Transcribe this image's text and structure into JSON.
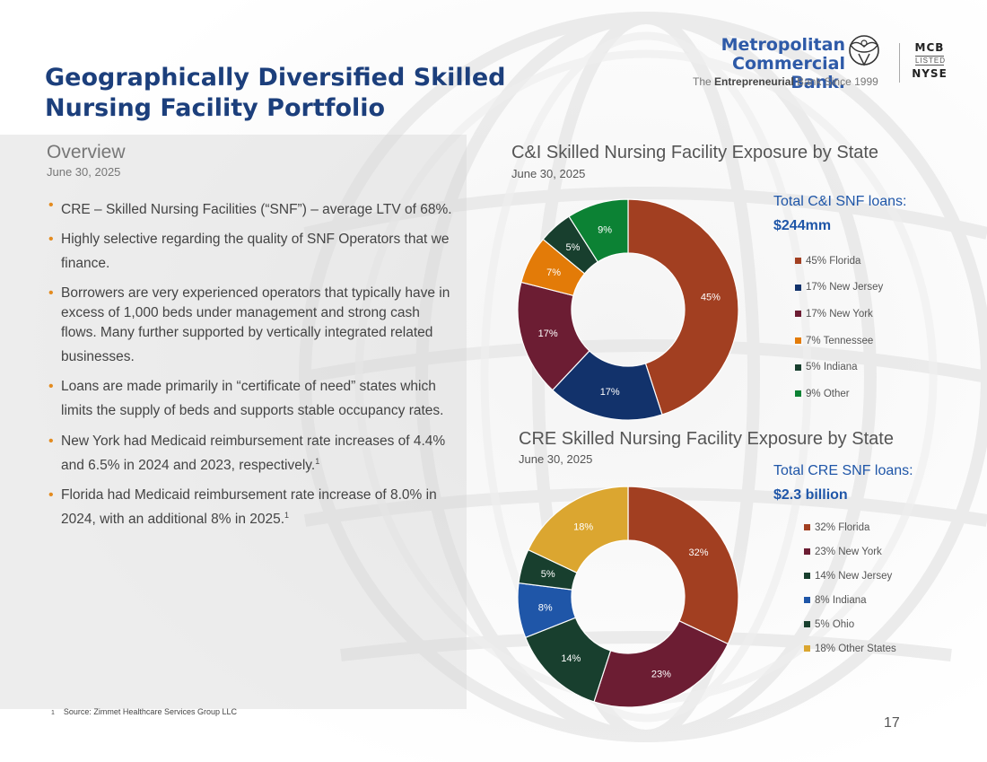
{
  "title": "Geographically Diversified Skilled Nursing Facility Portfolio",
  "logo": {
    "name": "Metropolitan\nCommercial Bank.",
    "tagline_pre": "The ",
    "tagline_bold": "Entrepreneurial",
    "tagline_post": " Bank Since 1999",
    "ticker": "MCB",
    "listed": "LISTED",
    "exchange": "NYSE"
  },
  "overview": {
    "heading": "Overview",
    "date": "June 30, 2025",
    "bullets": [
      "CRE – Skilled Nursing Facilities (“SNF”) – average LTV of 68%.",
      "Highly selective regarding the quality of SNF Operators that we finance.",
      "Borrowers are very experienced operators that typically have in excess of 1,000 beds under management and strong cash flows. Many further supported by vertically integrated related businesses.",
      "Loans are made primarily in “certificate of need” states which limits the supply of beds and supports stable occupancy rates.",
      "New York had Medicaid reimbursement rate increases of 4.4% and 6.5% in 2024 and 2023, respectively.",
      "Florida had Medicaid reimbursement rate increase of 8.0% in 2024, with an additional 8% in 2025."
    ],
    "bullet_sup": [
      "",
      "",
      "",
      "",
      "1",
      "1"
    ]
  },
  "chart_data": [
    {
      "type": "pie",
      "title": "C&I Skilled Nursing Facility Exposure by State",
      "subtitle": "June 30, 2025",
      "total_label": "Total C&I SNF loans:",
      "total_value": "$244mm",
      "categories": [
        "Florida",
        "New Jersey",
        "New York",
        "Tennessee",
        "Indiana",
        "Other"
      ],
      "values": [
        45,
        17,
        17,
        7,
        5,
        9
      ],
      "data_labels": [
        "45%",
        "17%",
        "17%",
        "7%",
        "5%",
        "9%"
      ],
      "legend": [
        "45% Florida",
        "17% New Jersey",
        "17% New York",
        "7% Tennessee",
        "5% Indiana",
        "9% Other"
      ],
      "colors": [
        "#a23f21",
        "#12326b",
        "#6c1d33",
        "#e37b08",
        "#183f2e",
        "#0c8234"
      ],
      "legend_placement": "right"
    },
    {
      "type": "pie",
      "title": "CRE Skilled Nursing Facility Exposure by State",
      "subtitle": "June 30, 2025",
      "total_label": "Total CRE SNF loans:",
      "total_value": "$2.3 billion",
      "categories": [
        "Florida",
        "New York",
        "New Jersey",
        "Indiana",
        "Ohio",
        "Other States"
      ],
      "values": [
        32,
        23,
        14,
        8,
        5,
        18
      ],
      "data_labels": [
        "32%",
        "23%",
        "14%",
        "8%",
        "5%",
        "18%"
      ],
      "legend": [
        "32% Florida",
        "23% New York",
        "14% New Jersey",
        "8% Indiana",
        "5% Ohio",
        "18% Other States"
      ],
      "colors": [
        "#a23f21",
        "#6c1d33",
        "#183f2e",
        "#1f56a8",
        "#183f2e",
        "#dba630"
      ],
      "legend_placement": "right"
    }
  ],
  "footnote": {
    "marker": "1",
    "text": "Source: Zimmet Healthcare Services Group LLC"
  },
  "page_number": "17"
}
